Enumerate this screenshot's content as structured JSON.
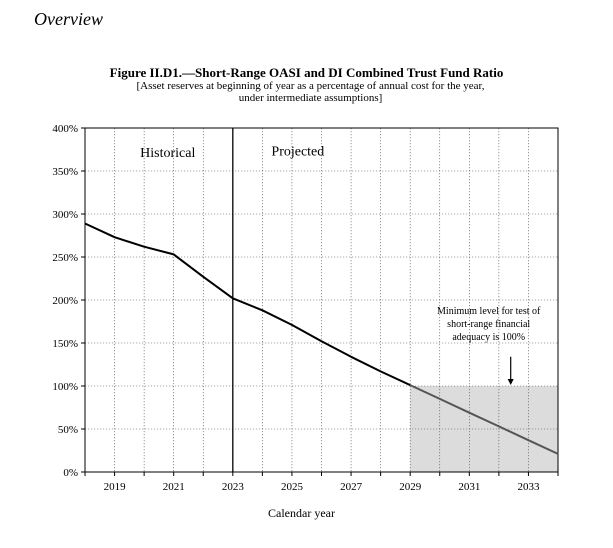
{
  "section": {
    "title": "Overview"
  },
  "figure": {
    "title": "Figure II.D1.—Short-Range OASI and DI Combined Trust Fund Ratio",
    "subtitle_line1": "[Asset reserves at beginning of year as a percentage of annual cost for the year,",
    "subtitle_line2": "under intermediate assumptions]"
  },
  "chart_data": {
    "type": "line",
    "title": "Short-Range OASI and DI Combined Trust Fund Ratio",
    "xlabel": "Calendar year",
    "ylabel": "",
    "xlim": [
      2018,
      2034
    ],
    "ylim": [
      0,
      400
    ],
    "y_ticks": [
      0,
      50,
      100,
      150,
      200,
      250,
      300,
      350,
      400
    ],
    "y_tick_suffix": "%",
    "x_ticks": [
      2019,
      2021,
      2023,
      2025,
      2027,
      2029,
      2031,
      2033
    ],
    "grid": true,
    "historical_end": 2023,
    "regions": {
      "historical": "Historical",
      "projected": "Projected"
    },
    "threshold": {
      "value": 100,
      "from_x": 2029,
      "to_x": 2034,
      "fill": "#dcdcdc"
    },
    "annotation": {
      "lines": [
        "Minimum level for test of",
        "short-range financial",
        "adequacy is 100%"
      ],
      "x": 2032.4,
      "arrow_to": 100
    },
    "series": [
      {
        "name": "Trust fund ratio",
        "color": "#000000",
        "x": [
          2018,
          2019,
          2020,
          2021,
          2022,
          2023,
          2024,
          2025,
          2026,
          2027,
          2028,
          2029,
          2030,
          2031,
          2032,
          2033,
          2034
        ],
        "values": [
          289,
          273,
          262,
          253,
          227,
          202,
          188,
          171,
          152,
          134,
          117,
          101,
          85,
          69,
          53,
          37,
          21
        ]
      }
    ]
  }
}
